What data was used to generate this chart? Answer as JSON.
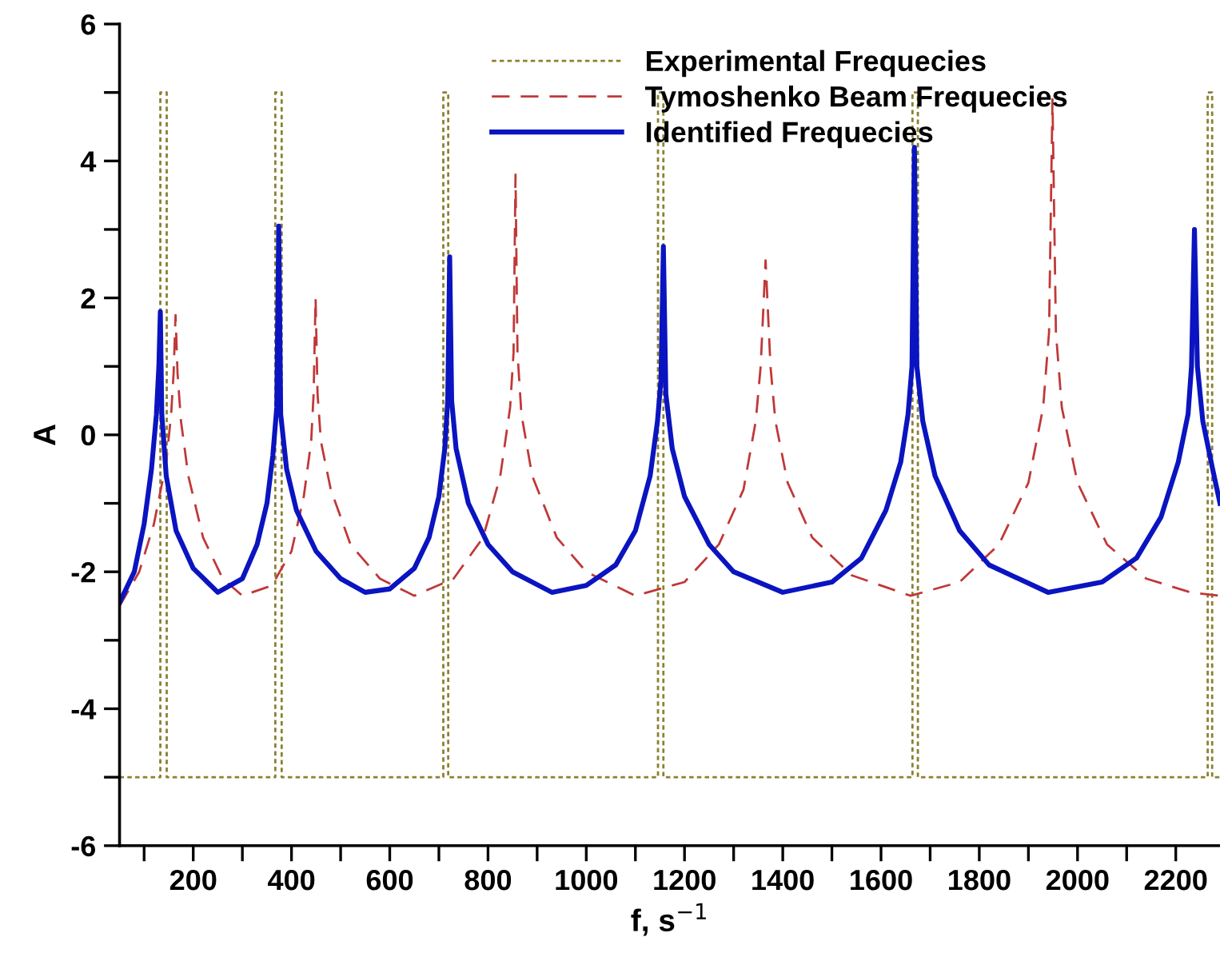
{
  "chart_data": {
    "type": "line",
    "xlabel": "f, s$^{−1}$",
    "ylabel": "A",
    "xlim": [
      50,
      2290
    ],
    "ylim": [
      -6,
      6
    ],
    "xticks": [
      {
        "value": 100,
        "label": null
      },
      200,
      {
        "value": 300,
        "label": null
      },
      400,
      {
        "value": 500,
        "label": null
      },
      600,
      {
        "value": 700,
        "label": null
      },
      800,
      {
        "value": 900,
        "label": null
      },
      1000,
      {
        "value": 1100,
        "label": null
      },
      1200,
      {
        "value": 1300,
        "label": null
      },
      1400,
      {
        "value": 1500,
        "label": null
      },
      1600,
      {
        "value": 1700,
        "label": null
      },
      1800,
      {
        "value": 1900,
        "label": null
      },
      2000,
      {
        "value": 2100,
        "label": null
      },
      2200
    ],
    "yticks": [
      -6,
      {
        "value": -5,
        "label": null
      },
      -4,
      {
        "value": -3,
        "label": null
      },
      -2,
      {
        "value": -1,
        "label": null
      },
      0,
      {
        "value": 1,
        "label": null
      },
      2,
      {
        "value": 3,
        "label": null
      },
      4,
      {
        "value": 5,
        "label": null
      },
      6
    ],
    "grid": false,
    "legend": "top",
    "marker": "none",
    "series": [
      {
        "name": "Experimental Frequecies",
        "color": "#8b8030",
        "line_style": "dotted",
        "x": [
          50,
          133,
          133,
          146,
          146,
          367,
          367,
          380,
          380,
          709,
          709,
          719,
          719,
          1146,
          1146,
          1157,
          1157,
          1664,
          1664,
          1675,
          1675,
          2265,
          2265,
          2274,
          2274,
          2290
        ],
        "values": [
          -5,
          -5,
          5,
          5,
          -5,
          -5,
          5,
          5,
          -5,
          -5,
          5,
          5,
          -5,
          -5,
          5,
          5,
          -5,
          -5,
          5,
          5,
          -5,
          -5,
          5,
          5,
          -5,
          -5
        ]
      },
      {
        "name": "Tymoshenko Beam Frequecies",
        "color": "#c03838",
        "line_style": "dashed",
        "x": [
          50,
          90,
          120,
          145,
          155,
          160,
          164,
          168,
          175,
          190,
          220,
          260,
          300,
          360,
          400,
          425,
          440,
          445,
          449,
          453,
          460,
          480,
          520,
          580,
          650,
          730,
          790,
          825,
          845,
          852,
          856,
          860,
          868,
          890,
          940,
          1000,
          1100,
          1200,
          1270,
          1320,
          1345,
          1355,
          1365,
          1375,
          1385,
          1410,
          1460,
          1540,
          1660,
          1760,
          1840,
          1900,
          1930,
          1942,
          1949,
          1956,
          1968,
          2000,
          2060,
          2140,
          2230,
          2290
        ],
        "values": [
          -2.5,
          -2.0,
          -1.3,
          -0.4,
          0.3,
          0.9,
          1.75,
          0.9,
          0.2,
          -0.6,
          -1.5,
          -2.1,
          -2.35,
          -2.2,
          -1.7,
          -0.9,
          -0.1,
          0.6,
          2.0,
          0.6,
          -0.1,
          -0.8,
          -1.6,
          -2.1,
          -2.35,
          -2.1,
          -1.5,
          -0.6,
          0.4,
          1.2,
          3.8,
          1.2,
          0.3,
          -0.6,
          -1.5,
          -2.0,
          -2.35,
          -2.15,
          -1.6,
          -0.8,
          0.2,
          1.0,
          2.55,
          1.0,
          0.2,
          -0.7,
          -1.5,
          -2.05,
          -2.35,
          -2.15,
          -1.6,
          -0.7,
          0.4,
          1.5,
          4.9,
          1.5,
          0.4,
          -0.7,
          -1.6,
          -2.1,
          -2.3,
          -2.35
        ]
      },
      {
        "name": "Identified Frequecies",
        "color": "#0a14c0",
        "line_style": "solid",
        "x": [
          50,
          80,
          100,
          115,
          125,
          130,
          133,
          136,
          145,
          165,
          200,
          250,
          300,
          330,
          350,
          362,
          370,
          374,
          378,
          390,
          410,
          450,
          500,
          550,
          600,
          650,
          680,
          700,
          712,
          718,
          722,
          726,
          735,
          760,
          800,
          850,
          930,
          1000,
          1060,
          1100,
          1130,
          1145,
          1152,
          1157,
          1162,
          1175,
          1200,
          1250,
          1300,
          1400,
          1500,
          1560,
          1610,
          1640,
          1655,
          1663,
          1668,
          1673,
          1685,
          1710,
          1760,
          1820,
          1940,
          2050,
          2120,
          2170,
          2205,
          2225,
          2232,
          2238,
          2244,
          2255,
          2275,
          2290
        ],
        "values": [
          -2.45,
          -2.0,
          -1.3,
          -0.5,
          0.3,
          1.0,
          1.8,
          0.3,
          -0.6,
          -1.4,
          -1.95,
          -2.3,
          -2.1,
          -1.6,
          -1.0,
          -0.3,
          0.4,
          3.05,
          0.3,
          -0.5,
          -1.1,
          -1.7,
          -2.1,
          -2.3,
          -2.25,
          -1.95,
          -1.5,
          -0.9,
          -0.2,
          0.5,
          2.6,
          0.5,
          -0.2,
          -1.0,
          -1.6,
          -2.0,
          -2.3,
          -2.2,
          -1.9,
          -1.4,
          -0.6,
          0.2,
          0.8,
          2.75,
          0.6,
          -0.2,
          -0.9,
          -1.6,
          -2.0,
          -2.3,
          -2.15,
          -1.8,
          -1.1,
          -0.4,
          0.3,
          1.0,
          4.2,
          1.0,
          0.2,
          -0.6,
          -1.4,
          -1.9,
          -2.3,
          -2.15,
          -1.8,
          -1.2,
          -0.4,
          0.3,
          1.0,
          3.0,
          1.0,
          0.2,
          -0.5,
          -1.0
        ]
      }
    ]
  }
}
